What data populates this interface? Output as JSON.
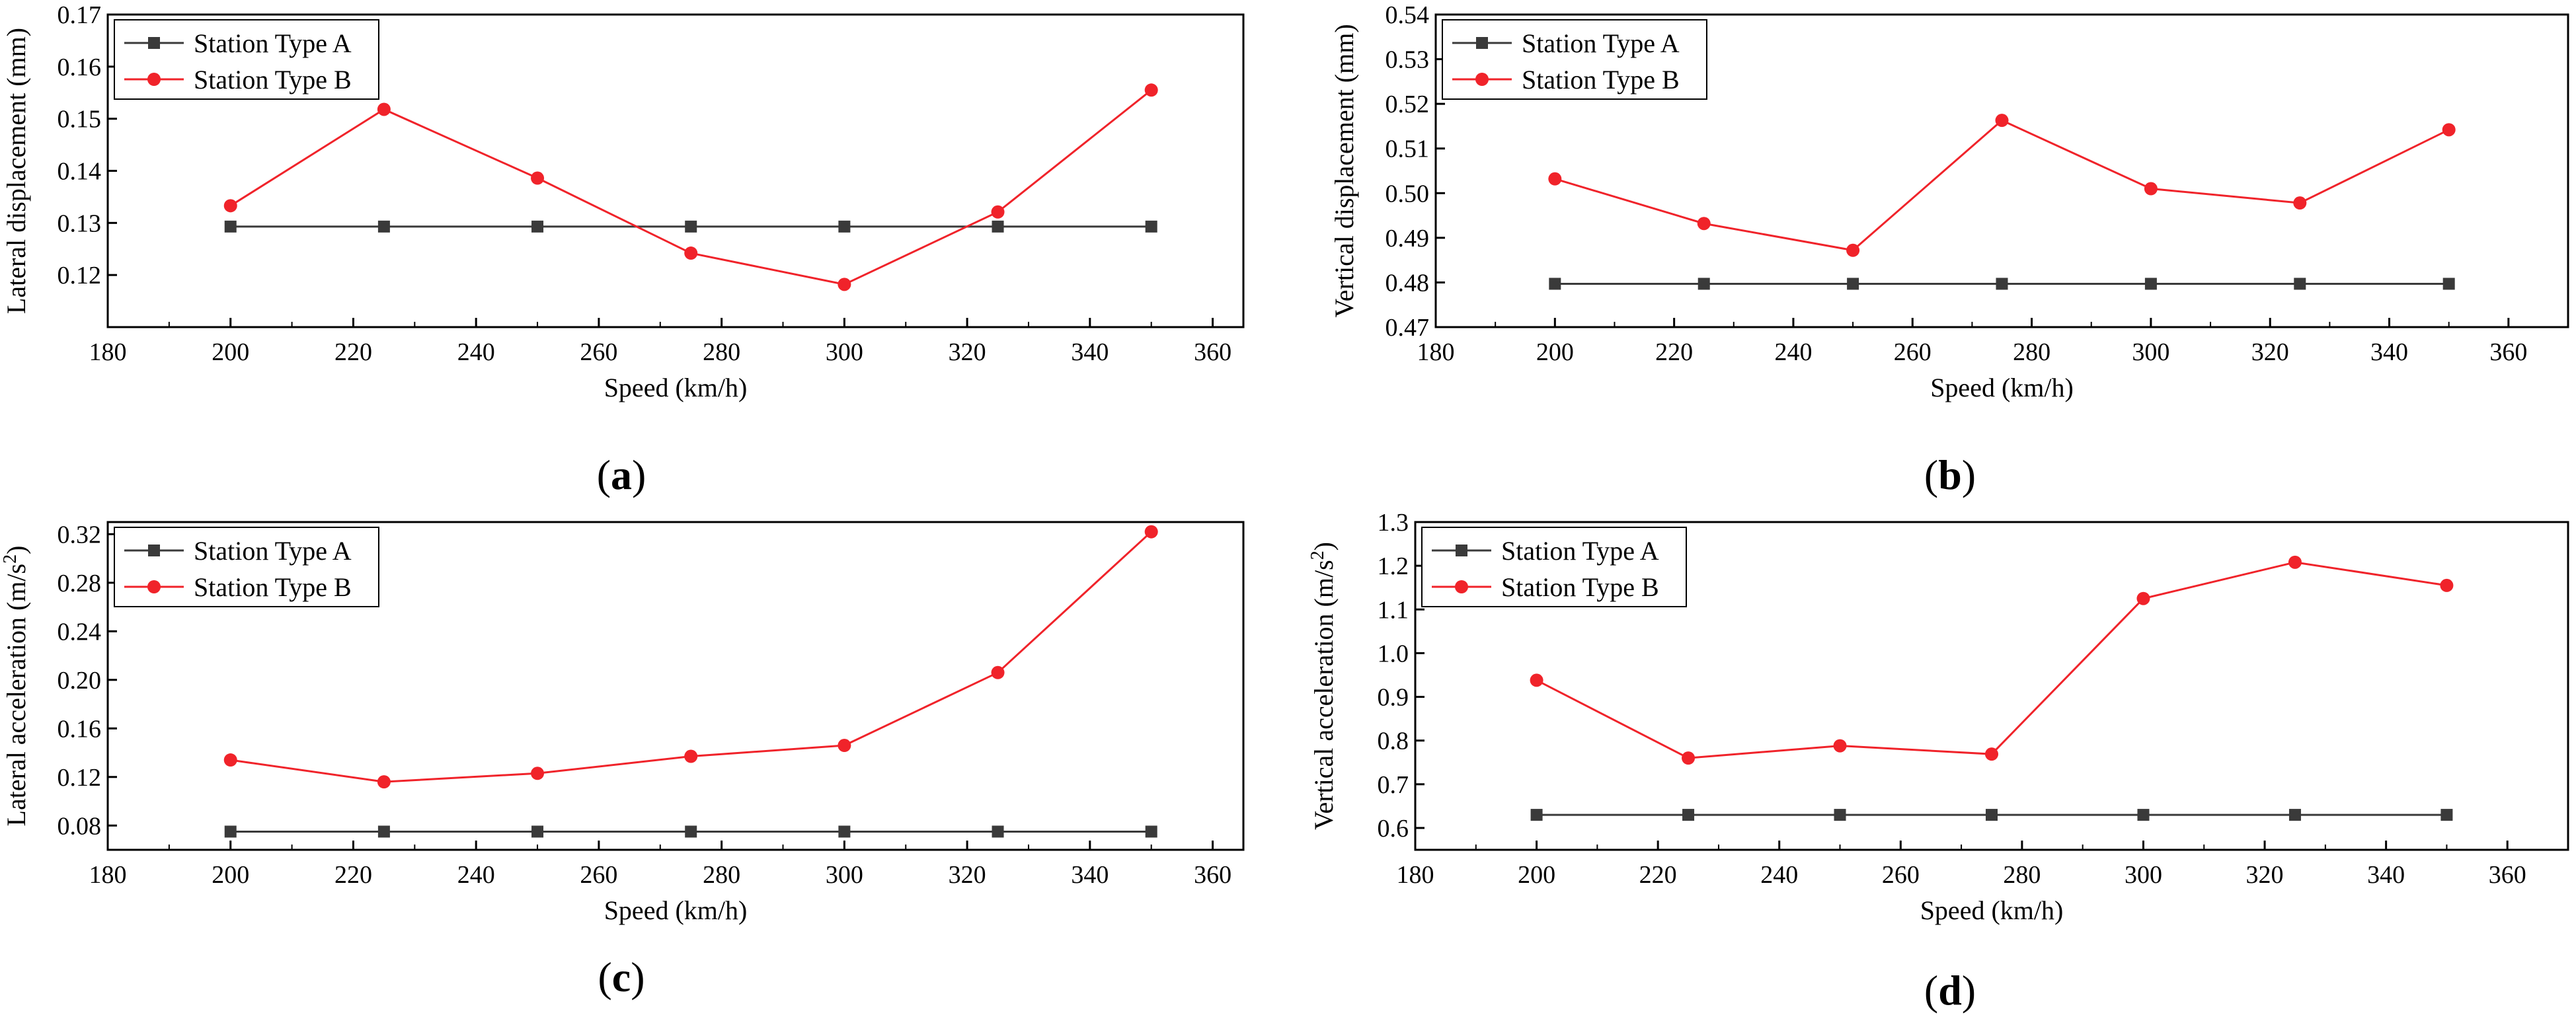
{
  "colors": {
    "series_a": "#3a3a3a",
    "series_b": "#f0232a",
    "axis": "#000000"
  },
  "chart_data": [
    {
      "id": "a",
      "type": "line",
      "panel_letter": "a",
      "xlabel": "Speed (km/h)",
      "ylabel": "Lateral displacement (mm)",
      "xlim": [
        180,
        365
      ],
      "ylim": [
        0.11,
        0.17
      ],
      "xticks": [
        180,
        200,
        220,
        240,
        260,
        280,
        300,
        320,
        340,
        360
      ],
      "yticks": [
        0.12,
        0.13,
        0.14,
        0.15,
        0.16,
        0.17
      ],
      "ytick_labels": [
        "0.12",
        "0.13",
        "0.14",
        "0.15",
        "0.16",
        "0.17"
      ],
      "x": [
        200,
        225,
        250,
        275,
        300,
        325,
        350
      ],
      "series": [
        {
          "name": "Station Type A",
          "marker": "square",
          "values": [
            0.1293,
            0.1293,
            0.1293,
            0.1293,
            0.1293,
            0.1293,
            0.1293
          ]
        },
        {
          "name": "Station Type B",
          "marker": "circle",
          "values": [
            0.1333,
            0.1518,
            0.1386,
            0.1242,
            0.1182,
            0.1321,
            0.1555
          ]
        }
      ],
      "legend": "top-left"
    },
    {
      "id": "b",
      "type": "line",
      "panel_letter": "b",
      "xlabel": "Speed (km/h)",
      "ylabel": "Vertical displacement (mm)",
      "xlim": [
        180,
        370
      ],
      "ylim": [
        0.47,
        0.54
      ],
      "xticks": [
        180,
        200,
        220,
        240,
        260,
        280,
        300,
        320,
        340,
        360
      ],
      "yticks": [
        0.47,
        0.48,
        0.49,
        0.5,
        0.51,
        0.52,
        0.53,
        0.54
      ],
      "ytick_labels": [
        "0.47",
        "0.48",
        "0.49",
        "0.50",
        "0.51",
        "0.52",
        "0.53",
        "0.54"
      ],
      "x": [
        200,
        225,
        250,
        275,
        300,
        325,
        350
      ],
      "series": [
        {
          "name": "Station Type A",
          "marker": "square",
          "values": [
            0.4797,
            0.4797,
            0.4797,
            0.4797,
            0.4797,
            0.4797,
            0.4797
          ]
        },
        {
          "name": "Station Type B",
          "marker": "circle",
          "values": [
            0.5032,
            0.4932,
            0.4872,
            0.5163,
            0.501,
            0.4978,
            0.5142
          ]
        }
      ],
      "legend": "top-left"
    },
    {
      "id": "c",
      "type": "line",
      "panel_letter": "c",
      "xlabel": "Speed (km/h)",
      "ylabel_main": "Lateral acceleration (m/s",
      "ylabel_sup": "2",
      "ylabel_end": ")",
      "xlim": [
        180,
        365
      ],
      "ylim": [
        0.06,
        0.33
      ],
      "xticks": [
        180,
        200,
        220,
        240,
        260,
        280,
        300,
        320,
        340,
        360
      ],
      "yticks": [
        0.08,
        0.12,
        0.16,
        0.2,
        0.24,
        0.28,
        0.32
      ],
      "ytick_labels": [
        "0.08",
        "0.12",
        "0.16",
        "0.20",
        "0.24",
        "0.28",
        "0.32"
      ],
      "x": [
        200,
        225,
        250,
        275,
        300,
        325,
        350
      ],
      "series": [
        {
          "name": "Station Type A",
          "marker": "square",
          "values": [
            0.075,
            0.075,
            0.075,
            0.075,
            0.075,
            0.075,
            0.075
          ]
        },
        {
          "name": "Station Type B",
          "marker": "circle",
          "values": [
            0.134,
            0.116,
            0.123,
            0.137,
            0.146,
            0.206,
            0.322
          ]
        }
      ],
      "legend": "top-left"
    },
    {
      "id": "d",
      "type": "line",
      "panel_letter": "d",
      "xlabel": "Speed (km/h)",
      "ylabel_main": "Vertical acceleration (m/s",
      "ylabel_sup": "2",
      "ylabel_end": ")",
      "xlim": [
        180,
        370
      ],
      "ylim": [
        0.55,
        1.3
      ],
      "xticks": [
        180,
        200,
        220,
        240,
        260,
        280,
        300,
        320,
        340,
        360
      ],
      "yticks": [
        0.6,
        0.7,
        0.8,
        0.9,
        1.0,
        1.1,
        1.2,
        1.3
      ],
      "ytick_labels": [
        "0.6",
        "0.7",
        "0.8",
        "0.9",
        "1.0",
        "1.1",
        "1.2",
        "1.3"
      ],
      "x": [
        200,
        225,
        250,
        275,
        300,
        325,
        350
      ],
      "series": [
        {
          "name": "Station Type A",
          "marker": "square",
          "values": [
            0.63,
            0.63,
            0.63,
            0.63,
            0.63,
            0.63,
            0.63
          ]
        },
        {
          "name": "Station Type B",
          "marker": "circle",
          "values": [
            0.938,
            0.76,
            0.788,
            0.769,
            1.125,
            1.208,
            1.155
          ]
        }
      ],
      "legend": "top-left"
    }
  ]
}
